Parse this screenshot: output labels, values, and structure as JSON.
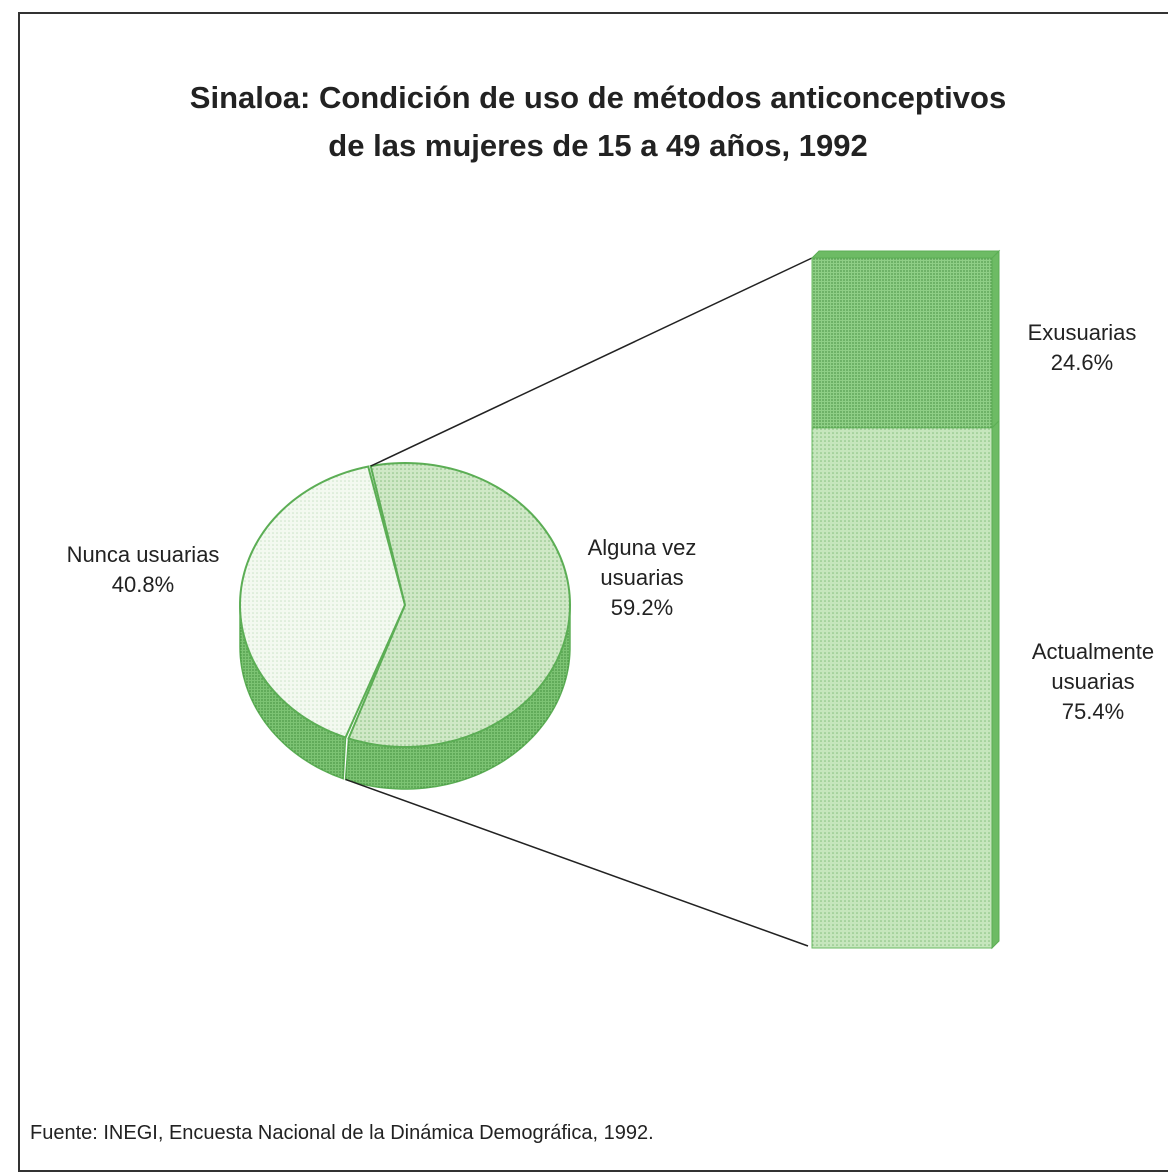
{
  "chart_data": [
    {
      "type": "pie",
      "title": [
        "Sinaloa: Condición de uso de métodos anticonceptivos",
        "de las mujeres de 15 a 49 años, 1992"
      ],
      "categories": [
        "Nunca usuarias",
        "Alguna vez usuarias"
      ],
      "values": [
        40.8,
        59.2
      ],
      "value_labels": [
        "40.8%",
        "59.2%"
      ],
      "colors": [
        "#f3f9f0",
        "#cfe8c6"
      ]
    },
    {
      "type": "bar",
      "categories": [
        "Exusuarias",
        "Actualmente usuarias"
      ],
      "values": [
        24.6,
        75.4
      ],
      "value_labels": [
        "24.6%",
        "75.4%"
      ],
      "colors": [
        "#8fcf86",
        "#c6e6bd"
      ]
    }
  ],
  "source": "Fuente:  INEGI, Encuesta Nacional de la Dinámica Demográfica, 1992."
}
